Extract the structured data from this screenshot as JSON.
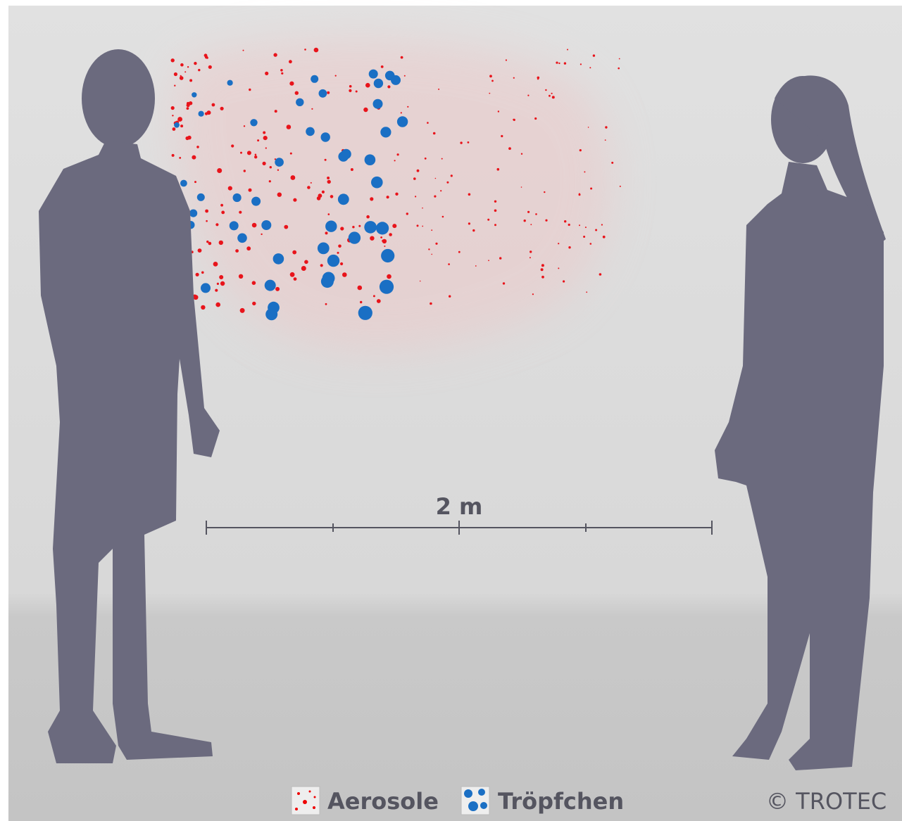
{
  "scale_label": "2 m",
  "legend": [
    {
      "label": "Aerosole"
    },
    {
      "label": "Tröpfchen"
    }
  ],
  "copyright": "© TROTEC"
}
